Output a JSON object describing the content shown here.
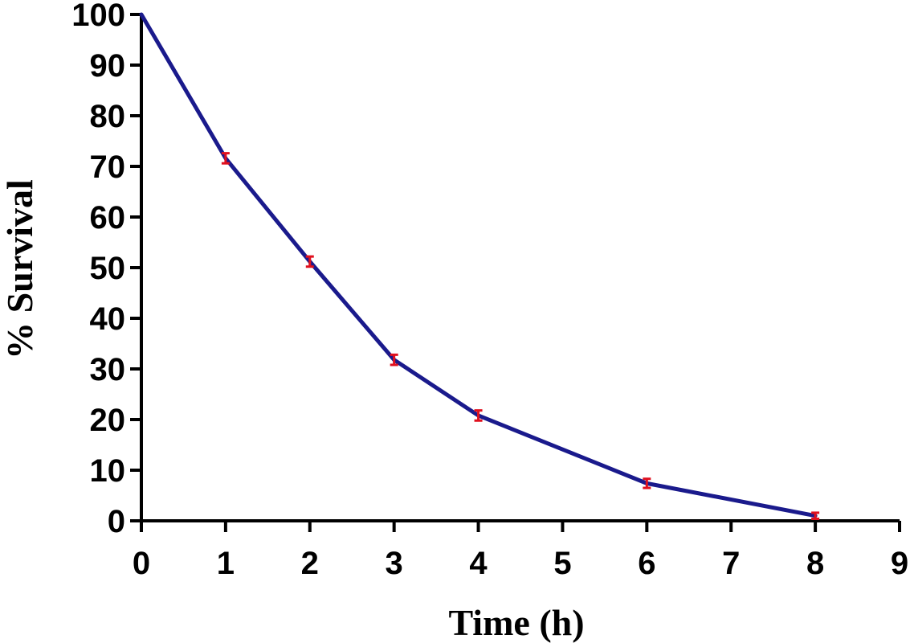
{
  "chart_data": {
    "type": "line",
    "title": "",
    "xlabel": "Time (h)",
    "ylabel": "% Survival",
    "xlim": [
      0,
      9
    ],
    "ylim": [
      0,
      100
    ],
    "x_ticks": [
      0,
      1,
      2,
      3,
      4,
      5,
      6,
      7,
      8,
      9
    ],
    "y_ticks": [
      0,
      10,
      20,
      30,
      40,
      50,
      60,
      70,
      80,
      90,
      100
    ],
    "grid": false,
    "legend": "none",
    "series": [
      {
        "x": [
          0,
          1,
          2,
          3,
          4,
          6,
          8
        ],
        "y": [
          100,
          71.6,
          51.2,
          31.8,
          20.8,
          7.4,
          1.0
        ],
        "error": [
          0,
          1.0,
          1.0,
          1.0,
          1.0,
          0.9,
          0.6
        ],
        "color": "#1a1a8c",
        "error_color": "#e0101e"
      }
    ],
    "colors": {
      "axis": "#000000",
      "line": "#1a1a8c",
      "error_bar": "#e0101e"
    }
  }
}
